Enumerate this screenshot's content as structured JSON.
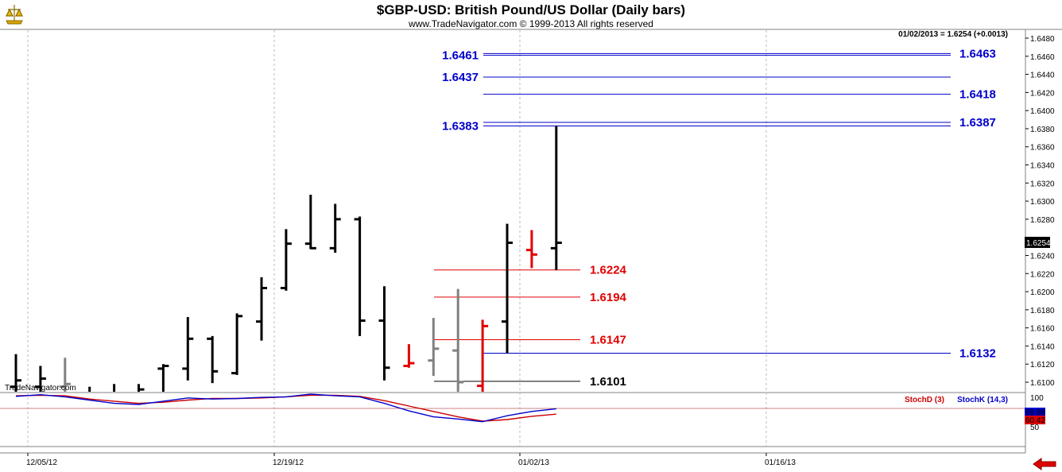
{
  "header": {
    "title": "$GBP-USD:  British Pound/US Dollar  (Daily bars)",
    "subtitle": "www.TradeNavigator.com © 1999-2013 All rights reserved",
    "readout": "01/02/2013 = 1.6254 (+0.0013)"
  },
  "watermark": "TradeNavigator.com",
  "last_price_tag": "1.6254",
  "indicator": {
    "stochd_label": "StochD (3)",
    "stochk_label": "StochK (14,3)",
    "stochk_value": "69.88",
    "stochd_value": "60.42",
    "ticks": [
      "100",
      "50"
    ]
  },
  "colors": {
    "up_bar": "#000000",
    "down_bar": "#e00000",
    "neutral_bar": "#808080",
    "resistance": "#0000cc",
    "support": "#e00000",
    "stochk": "#0000cc",
    "stochd": "#cc0000",
    "back_arrow": "#e00000"
  },
  "icons": {
    "logo": "trade-navigator-logo-icon",
    "back": "back-arrow-icon"
  },
  "chart_data": {
    "type": "ohlc",
    "title": "$GBP-USD:  British Pound/US Dollar  (Daily bars)",
    "x_tick_labels": [
      "12/05/12",
      "12/19/12",
      "01/02/13",
      "01/16/13"
    ],
    "y_tick_labels": [
      "1.6100",
      "1.6120",
      "1.6140",
      "1.6160",
      "1.6180",
      "1.6200",
      "1.6220",
      "1.6240",
      "1.6260",
      "1.6280",
      "1.6300",
      "1.6320",
      "1.6340",
      "1.6360",
      "1.6380",
      "1.6400",
      "1.6420",
      "1.6440",
      "1.6460",
      "1.6480"
    ],
    "ylim": [
      1.609,
      1.649
    ],
    "grid": "vertical dashed at date labels",
    "bars": [
      {
        "date": "11/29/12",
        "open": 1.6095,
        "high": 1.6131,
        "low": 1.6082,
        "close": 1.6102,
        "color": "black"
      },
      {
        "date": "11/30/12",
        "open": 1.6095,
        "high": 1.6118,
        "low": 1.608,
        "close": 1.6104,
        "color": "black"
      },
      {
        "date": "12/03/12",
        "open": 1.6095,
        "high": 1.6127,
        "low": 1.608,
        "close": 1.6098,
        "color": "gray"
      },
      {
        "date": "12/04/12",
        "open": 1.6075,
        "high": 1.6095,
        "low": 1.604,
        "close": 1.608,
        "color": "black"
      },
      {
        "date": "12/05/12",
        "open": 1.608,
        "high": 1.6098,
        "low": 1.605,
        "close": 1.608,
        "color": "black"
      },
      {
        "date": "12/06/12",
        "open": 1.606,
        "high": 1.6098,
        "low": 1.604,
        "close": 1.6092,
        "color": "black"
      },
      {
        "date": "12/07/12",
        "open": 1.6115,
        "high": 1.612,
        "low": 1.6075,
        "close": 1.6118,
        "color": "black"
      },
      {
        "date": "12/10/12",
        "open": 1.6115,
        "high": 1.6172,
        "low": 1.6102,
        "close": 1.6148,
        "color": "black"
      },
      {
        "date": "12/11/12",
        "open": 1.6148,
        "high": 1.6151,
        "low": 1.6099,
        "close": 1.6112,
        "color": "black"
      },
      {
        "date": "12/12/12",
        "open": 1.611,
        "high": 1.6176,
        "low": 1.6108,
        "close": 1.6173,
        "color": "black"
      },
      {
        "date": "12/13/12",
        "open": 1.6167,
        "high": 1.6216,
        "low": 1.6146,
        "close": 1.6204,
        "color": "black"
      },
      {
        "date": "12/14/12",
        "open": 1.6204,
        "high": 1.6269,
        "low": 1.6201,
        "close": 1.6253,
        "color": "black"
      },
      {
        "date": "12/17/12",
        "open": 1.6253,
        "high": 1.6307,
        "low": 1.6247,
        "close": 1.6248,
        "color": "black"
      },
      {
        "date": "12/18/12",
        "open": 1.6248,
        "high": 1.6297,
        "low": 1.6243,
        "close": 1.628,
        "color": "black"
      },
      {
        "date": "12/19/12",
        "open": 1.628,
        "high": 1.6283,
        "low": 1.6151,
        "close": 1.6168,
        "color": "black"
      },
      {
        "date": "12/20/12",
        "open": 1.6168,
        "high": 1.6206,
        "low": 1.6102,
        "close": 1.6116,
        "color": "black"
      },
      {
        "date": "12/21/12",
        "open": 1.6118,
        "high": 1.6142,
        "low": 1.6116,
        "close": 1.6121,
        "color": "red"
      },
      {
        "date": "12/24/12",
        "open": 1.6124,
        "high": 1.6171,
        "low": 1.6107,
        "close": 1.6137,
        "color": "gray"
      },
      {
        "date": "12/26/12",
        "open": 1.6135,
        "high": 1.6203,
        "low": 1.6084,
        "close": 1.61,
        "color": "gray"
      },
      {
        "date": "12/27/12",
        "open": 1.6096,
        "high": 1.6169,
        "low": 1.6086,
        "close": 1.6162,
        "color": "red"
      },
      {
        "date": "12/28/12",
        "open": 1.6167,
        "high": 1.6275,
        "low": 1.6132,
        "close": 1.6254,
        "color": "black"
      },
      {
        "date": "12/31/12",
        "open": 1.6246,
        "high": 1.6268,
        "low": 1.6226,
        "close": 1.6241,
        "color": "red"
      },
      {
        "date": "01/02/13",
        "open": 1.6248,
        "high": 1.6383,
        "low": 1.6224,
        "close": 1.6254,
        "color": "black"
      }
    ],
    "levels": [
      {
        "value": "1.6461",
        "color": "blue",
        "side": "left"
      },
      {
        "value": "1.6463",
        "color": "blue",
        "side": "right"
      },
      {
        "value": "1.6437",
        "color": "blue",
        "side": "left"
      },
      {
        "value": "1.6418",
        "color": "blue",
        "side": "right"
      },
      {
        "value": "1.6383",
        "color": "blue",
        "side": "left"
      },
      {
        "value": "1.6387",
        "color": "blue",
        "side": "right"
      },
      {
        "value": "1.6224",
        "color": "red",
        "side": "right"
      },
      {
        "value": "1.6194",
        "color": "red",
        "side": "right"
      },
      {
        "value": "1.6147",
        "color": "red",
        "side": "right"
      },
      {
        "value": "1.6132",
        "color": "blue",
        "side": "right"
      },
      {
        "value": "1.6101",
        "color": "black",
        "side": "right"
      }
    ],
    "stochastic": {
      "k_name": "StochK (14,3)",
      "d_name": "StochD (3)",
      "ylim": [
        0,
        100
      ],
      "k": [
        93,
        96,
        92,
        86,
        80,
        78,
        84,
        90,
        88,
        89,
        91,
        92,
        97,
        94,
        92,
        80,
        66,
        55,
        51,
        46,
        57,
        65,
        70
      ],
      "d": [
        94,
        95,
        94,
        88,
        84,
        80,
        82,
        86,
        89,
        89,
        90,
        92,
        95,
        95,
        93,
        85,
        75,
        65,
        55,
        47,
        50,
        56,
        60
      ]
    }
  }
}
